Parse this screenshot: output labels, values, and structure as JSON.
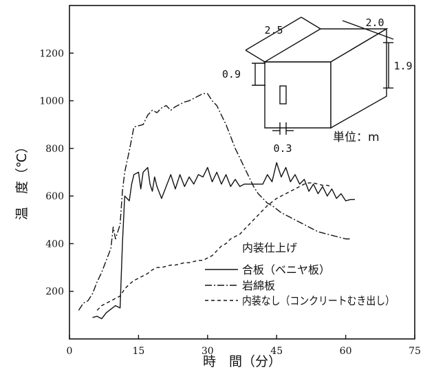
{
  "chart_data": {
    "type": "line",
    "xlabel": "時　間（分）",
    "ylabel": "温　度（℃）",
    "xlim": [
      0,
      75
    ],
    "ylim": [
      0,
      1400
    ],
    "xticks": [
      0,
      15,
      30,
      45,
      60,
      75
    ],
    "yticks": [
      200,
      400,
      600,
      800,
      1000,
      1200
    ],
    "grid": false,
    "legend_position": "bottom-right",
    "legend_title": "内装仕上げ",
    "series": [
      {
        "name": "合板（ベニヤ板）",
        "style": "solid",
        "points": [
          [
            5,
            90
          ],
          [
            6,
            95
          ],
          [
            7,
            85
          ],
          [
            8,
            110
          ],
          [
            9,
            125
          ],
          [
            10,
            140
          ],
          [
            11,
            130
          ],
          [
            11.5,
            400
          ],
          [
            12,
            600
          ],
          [
            13,
            580
          ],
          [
            13.5,
            650
          ],
          [
            14,
            690
          ],
          [
            15,
            700
          ],
          [
            15.5,
            630
          ],
          [
            16,
            700
          ],
          [
            17,
            720
          ],
          [
            17.5,
            650
          ],
          [
            18,
            620
          ],
          [
            18.5,
            680
          ],
          [
            19,
            640
          ],
          [
            20,
            590
          ],
          [
            21,
            640
          ],
          [
            22,
            690
          ],
          [
            23,
            630
          ],
          [
            24,
            690
          ],
          [
            25,
            640
          ],
          [
            26,
            680
          ],
          [
            27,
            650
          ],
          [
            28,
            690
          ],
          [
            29,
            680
          ],
          [
            30,
            720
          ],
          [
            31,
            660
          ],
          [
            32,
            700
          ],
          [
            33,
            650
          ],
          [
            34,
            690
          ],
          [
            35,
            640
          ],
          [
            36,
            670
          ],
          [
            37,
            640
          ],
          [
            38,
            650
          ],
          [
            40,
            650
          ],
          [
            42,
            650
          ],
          [
            43,
            690
          ],
          [
            44,
            660
          ],
          [
            45,
            740
          ],
          [
            46,
            680
          ],
          [
            47,
            720
          ],
          [
            48,
            660
          ],
          [
            49,
            690
          ],
          [
            50,
            650
          ],
          [
            51,
            670
          ],
          [
            52,
            620
          ],
          [
            53,
            650
          ],
          [
            54,
            610
          ],
          [
            55,
            640
          ],
          [
            56,
            600
          ],
          [
            57,
            630
          ],
          [
            58,
            590
          ],
          [
            59,
            610
          ],
          [
            60,
            580
          ],
          [
            61,
            585
          ],
          [
            62,
            585
          ]
        ]
      },
      {
        "name": "岩綿板",
        "style": "dash-dot",
        "points": [
          [
            2,
            120
          ],
          [
            3,
            150
          ],
          [
            4,
            160
          ],
          [
            5,
            190
          ],
          [
            6,
            240
          ],
          [
            7,
            280
          ],
          [
            8,
            330
          ],
          [
            9,
            380
          ],
          [
            9.5,
            470
          ],
          [
            10,
            420
          ],
          [
            11,
            480
          ],
          [
            11.5,
            620
          ],
          [
            12,
            700
          ],
          [
            13,
            790
          ],
          [
            14,
            890
          ],
          [
            15,
            895
          ],
          [
            16,
            900
          ],
          [
            17,
            940
          ],
          [
            18,
            960
          ],
          [
            19,
            950
          ],
          [
            20,
            970
          ],
          [
            21,
            980
          ],
          [
            22,
            960
          ],
          [
            23,
            975
          ],
          [
            24,
            985
          ],
          [
            25,
            995
          ],
          [
            26,
            1000
          ],
          [
            27,
            1010
          ],
          [
            28,
            1020
          ],
          [
            29,
            1030
          ],
          [
            30,
            1030
          ],
          [
            31,
            1000
          ],
          [
            32,
            980
          ],
          [
            33,
            940
          ],
          [
            34,
            900
          ],
          [
            35,
            850
          ],
          [
            36,
            800
          ],
          [
            37,
            760
          ],
          [
            38,
            720
          ],
          [
            39,
            680
          ],
          [
            40,
            640
          ],
          [
            41,
            610
          ],
          [
            42,
            590
          ],
          [
            43,
            570
          ],
          [
            44,
            560
          ],
          [
            45,
            545
          ],
          [
            46,
            530
          ],
          [
            47,
            520
          ],
          [
            48,
            510
          ],
          [
            49,
            500
          ],
          [
            50,
            490
          ],
          [
            51,
            480
          ],
          [
            52,
            470
          ],
          [
            53,
            460
          ],
          [
            54,
            450
          ],
          [
            55,
            445
          ],
          [
            56,
            440
          ],
          [
            57,
            435
          ],
          [
            58,
            430
          ],
          [
            59,
            425
          ],
          [
            60,
            420
          ],
          [
            61,
            420
          ]
        ]
      },
      {
        "name": "内装なし（コンクリートむき出し）",
        "style": "dashed",
        "points": [
          [
            6,
            120
          ],
          [
            7,
            140
          ],
          [
            8,
            150
          ],
          [
            9,
            160
          ],
          [
            10,
            170
          ],
          [
            11,
            180
          ],
          [
            12,
            210
          ],
          [
            13,
            230
          ],
          [
            14,
            245
          ],
          [
            15,
            255
          ],
          [
            16,
            265
          ],
          [
            17,
            275
          ],
          [
            18,
            290
          ],
          [
            19,
            300
          ],
          [
            20,
            300
          ],
          [
            21,
            305
          ],
          [
            22,
            310
          ],
          [
            23,
            310
          ],
          [
            24,
            315
          ],
          [
            25,
            320
          ],
          [
            26,
            320
          ],
          [
            27,
            325
          ],
          [
            28,
            330
          ],
          [
            29,
            330
          ],
          [
            30,
            340
          ],
          [
            31,
            350
          ],
          [
            32,
            370
          ],
          [
            33,
            390
          ],
          [
            34,
            400
          ],
          [
            35,
            420
          ],
          [
            36,
            430
          ],
          [
            37,
            440
          ],
          [
            38,
            460
          ],
          [
            39,
            480
          ],
          [
            40,
            500
          ],
          [
            41,
            520
          ],
          [
            42,
            540
          ],
          [
            43,
            560
          ],
          [
            44,
            575
          ],
          [
            45,
            590
          ],
          [
            46,
            600
          ],
          [
            47,
            610
          ],
          [
            48,
            620
          ],
          [
            49,
            630
          ],
          [
            50,
            640
          ],
          [
            51,
            650
          ],
          [
            52,
            655
          ],
          [
            53,
            655
          ],
          [
            54,
            650
          ],
          [
            55,
            645
          ],
          [
            56,
            645
          ],
          [
            57,
            640
          ]
        ]
      }
    ],
    "annotations": {
      "box_dims": [
        "2.5",
        "2.0",
        "1.9",
        "0.9",
        "0.3"
      ],
      "unit_text": "単位：m"
    }
  }
}
